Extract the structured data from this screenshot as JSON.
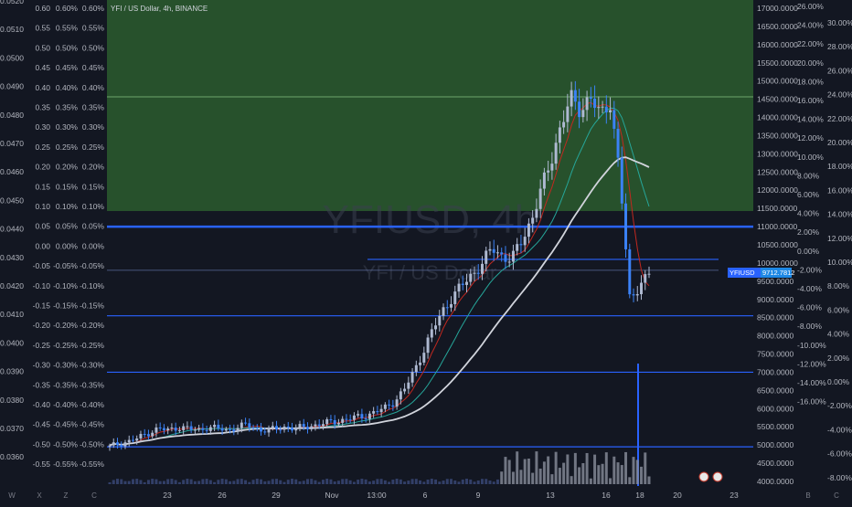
{
  "chart_header": {
    "symbol_description": "YFI / US Dollar, 4h, BINANCE"
  },
  "watermark": {
    "ticker": "YFIUSD, 4h",
    "description": "YFI / US Dollar"
  },
  "price_label": {
    "symbol": "YFIUSD",
    "value": "9712.7812"
  },
  "colors": {
    "background": "#131722",
    "zone_fill": "#2b5c2e",
    "level_line": "#2962ff",
    "bull_candle": "#aeb9d1",
    "bear_candle": "#3b82f6",
    "ma_fast": "#c2281f",
    "ma_mid": "#26a69a",
    "ma_slow": "#d1d4dc",
    "price_label_bg": "#2962ff"
  },
  "left_axes": {
    "col1": [
      "0.0520",
      "0.0510",
      "0.0500",
      "0.0490",
      "0.0480",
      "0.0470",
      "0.0460",
      "0.0450",
      "0.0440",
      "0.0430",
      "0.0420",
      "0.0410",
      "0.0400",
      "0.0390",
      "0.0380",
      "0.0370",
      "0.0360",
      "0.0350"
    ],
    "col2": [
      "0.60",
      "0.55",
      "0.50",
      "0.45",
      "0.40",
      "0.35",
      "0.30",
      "0.25",
      "0.20",
      "0.15",
      "0.10",
      "0.05",
      "0.00",
      "-0.05",
      "-0.10",
      "-0.15",
      "-0.20",
      "-0.25",
      "-0.30",
      "-0.35",
      "-0.40",
      "-0.45",
      "-0.50",
      "-0.55"
    ],
    "col3": [
      "0.60%",
      "0.55%",
      "0.50%",
      "0.45%",
      "0.40%",
      "0.35%",
      "0.30%",
      "0.25%",
      "0.20%",
      "0.15%",
      "0.10%",
      "0.05%",
      "0.00%",
      "-0.05%",
      "-0.10%",
      "-0.15%",
      "-0.20%",
      "-0.25%",
      "-0.30%",
      "-0.35%",
      "-0.40%",
      "-0.45%",
      "-0.50%",
      "-0.55%"
    ],
    "col4": [
      "0.60%",
      "0.55%",
      "0.50%",
      "0.45%",
      "0.40%",
      "0.35%",
      "0.30%",
      "0.25%",
      "0.20%",
      "0.15%",
      "0.10%",
      "0.05%",
      "0.00%",
      "-0.05%",
      "-0.10%",
      "-0.15%",
      "-0.20%",
      "-0.25%",
      "-0.30%",
      "-0.35%",
      "-0.40%",
      "-0.45%",
      "-0.50%",
      "-0.55%"
    ]
  },
  "right_axes": {
    "price": [
      "17000.0000",
      "16500.0000",
      "16000.0000",
      "15500.0000",
      "15000.0000",
      "14500.0000",
      "14000.0000",
      "13500.0000",
      "13000.0000",
      "12500.0000",
      "12000.0000",
      "11500.0000",
      "11000.0000",
      "10500.0000",
      "10000.0000",
      "9500.0000",
      "9000.0000",
      "8500.0000",
      "8000.0000",
      "7500.0000",
      "7000.0000",
      "6500.0000",
      "6000.0000",
      "5500.0000",
      "5000.0000",
      "4500.0000",
      "4000.0000"
    ],
    "pct1": [
      "26.00%",
      "24.00%",
      "22.00%",
      "20.00%",
      "18.00%",
      "16.00%",
      "14.00%",
      "12.00%",
      "10.00%",
      "8.00%",
      "6.00%",
      "4.00%",
      "2.00%",
      "0.00%",
      "-2.00%",
      "-4.00%",
      "-6.00%",
      "-8.00%",
      "-10.00%",
      "-12.00%",
      "-14.00%",
      "-16.00%"
    ],
    "pct2": [
      "30.00%",
      "28.00%",
      "26.00%",
      "24.00%",
      "22.00%",
      "20.00%",
      "18.00%",
      "16.00%",
      "14.00%",
      "12.00%",
      "10.00%",
      "8.00%",
      "6.00%",
      "4.00%",
      "2.00%",
      "0.00%",
      "-2.00%",
      "-4.00%",
      "-6.00%",
      "-8.00%"
    ]
  },
  "time_axis": {
    "labels": [
      "23",
      "26",
      "29",
      "Nov",
      "13:00",
      "6",
      "9",
      "13",
      "16",
      "18",
      "20",
      "23"
    ]
  },
  "bottom_bar": {
    "left_icons": [
      "W",
      "X",
      "Z",
      "C"
    ],
    "right_icons": [
      "B",
      "C"
    ]
  },
  "chart_data": {
    "type": "candlestick",
    "symbol": "YFIUSD",
    "timeframe": "4h",
    "exchange": "BINANCE",
    "price_range": [
      4000,
      17250
    ],
    "last_price": 9712.7812,
    "horizontal_levels": [
      11000,
      10100,
      9800,
      8550,
      7000,
      4950
    ],
    "zone": {
      "from": 11000,
      "to": 17250
    },
    "series": [
      {
        "closes_approx": [
          4950,
          5050,
          5100,
          5200,
          5350,
          5450,
          5400,
          5500,
          5450,
          5400,
          5500,
          5450,
          5400,
          5500,
          5550,
          5450,
          5400,
          5450,
          5500,
          5450,
          5500,
          5550,
          5600,
          5650,
          5700,
          5750,
          5800,
          5900,
          6000,
          6200,
          6500,
          7000,
          7600,
          8200,
          8700,
          9100,
          9400,
          9700,
          10000,
          10400,
          10200,
          10100,
          10600,
          11200,
          12000,
          12800,
          13800,
          14500,
          14200,
          14600,
          14000,
          14500,
          12500,
          9000,
          9400,
          9712
        ]
      }
    ]
  }
}
